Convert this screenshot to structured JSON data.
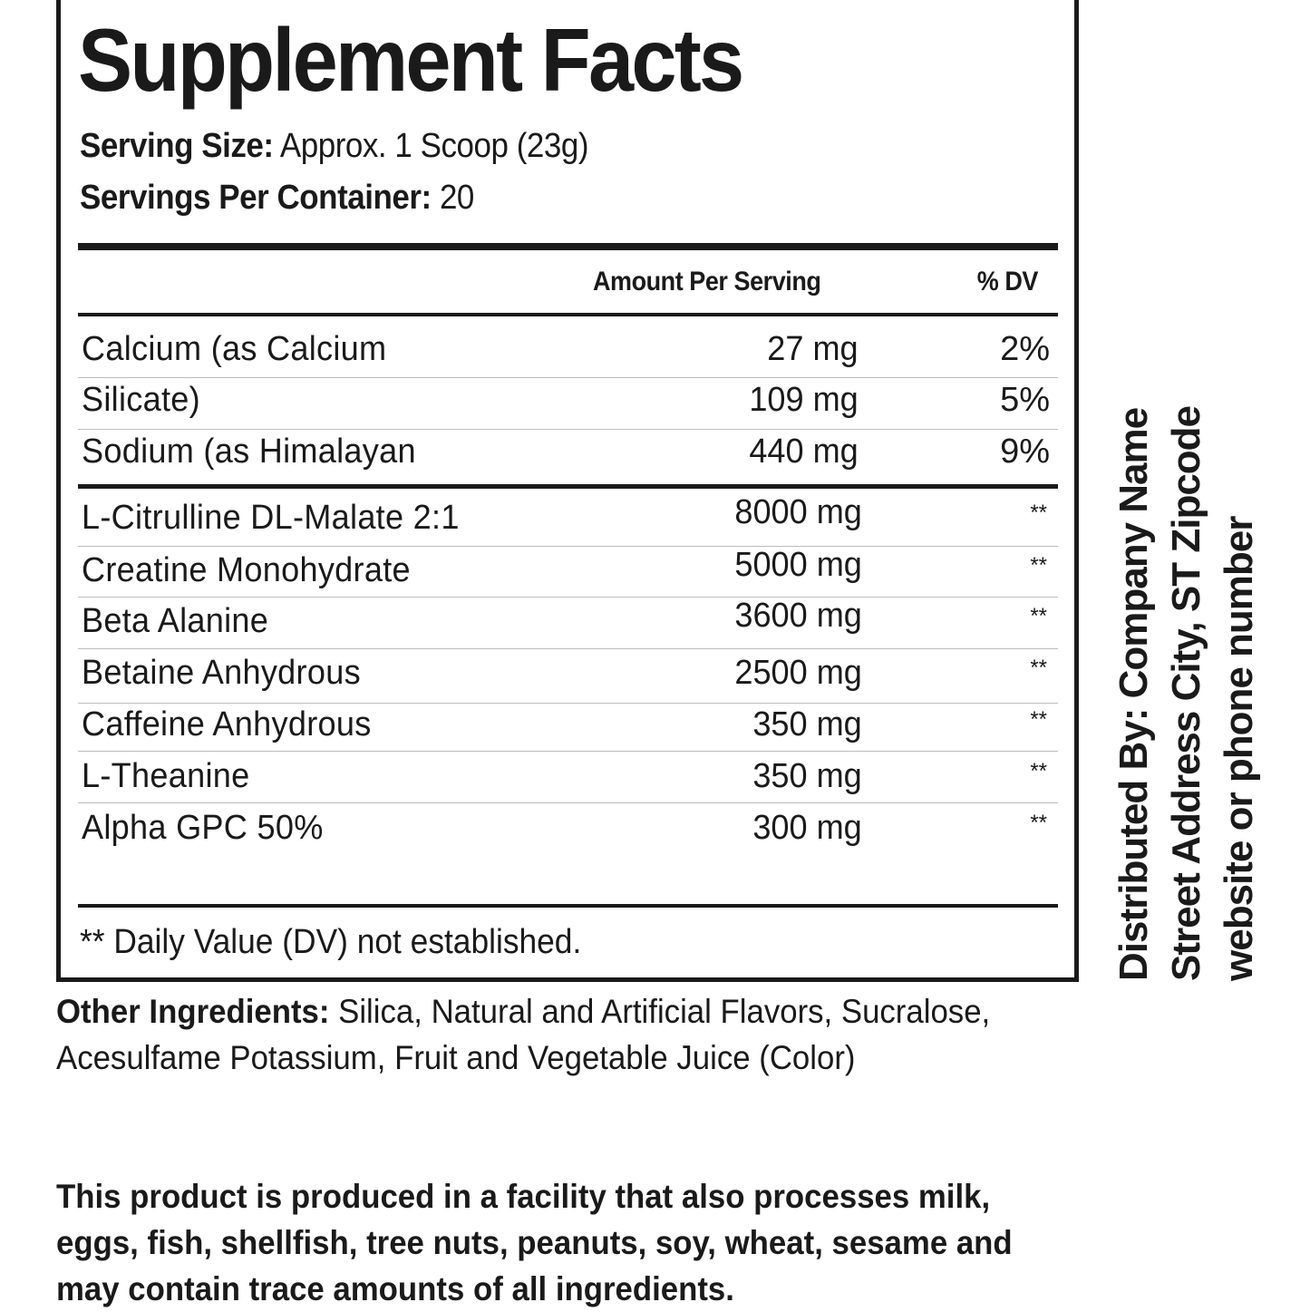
{
  "title": "Supplement Facts",
  "serving_size": {
    "label": "Serving Size:",
    "value": "Approx. 1 Scoop (23g)"
  },
  "servings_per_container": {
    "label": "Servings Per Container:",
    "value": "20"
  },
  "columns": {
    "amount": "Amount Per Serving",
    "dv": "% DV"
  },
  "minerals": [
    {
      "name": "Calcium (as Calcium",
      "amount": "27 mg",
      "dv": "2%"
    },
    {
      "name": "Silicate)",
      "amount": "109 mg",
      "dv": "5%"
    },
    {
      "name": "Sodium (as Himalayan",
      "amount": "440 mg",
      "dv": "9%"
    }
  ],
  "ingredients": [
    {
      "name": "L-Citrulline DL-Malate 2:1",
      "amount": "8000 mg",
      "dv": "**"
    },
    {
      "name": "Creatine Monohydrate",
      "amount": "5000 mg",
      "dv": "**"
    },
    {
      "name": "Beta Alanine",
      "amount": "3600 mg",
      "dv": "**"
    },
    {
      "name": "Betaine Anhydrous",
      "amount": "2500 mg",
      "dv": "**"
    },
    {
      "name": "Caffeine Anhydrous",
      "amount": "350 mg",
      "dv": "**"
    },
    {
      "name": "L-Theanine",
      "amount": "350 mg",
      "dv": "**"
    },
    {
      "name": "Alpha GPC 50%",
      "amount": "300 mg",
      "dv": "**"
    }
  ],
  "footnote": "** Daily Value (DV) not established.",
  "other_ingredients": {
    "label": "Other Ingredients:",
    "value": "Silica, Natural and Artificial Flavors, Sucralose, Acesulfame Potassium, Fruit and Vegetable Juice (Color)"
  },
  "allergen_statement": "This product is produced in a facility that also processes milk, eggs, fish, shellfish, tree nuts, peanuts, soy, wheat, sesame and may contain trace amounts of all ingredients.",
  "distributor": {
    "line1": "Distributed By: Company Name",
    "line2": "Street Address City, ST Zipcode",
    "line3": "website or phone number"
  }
}
